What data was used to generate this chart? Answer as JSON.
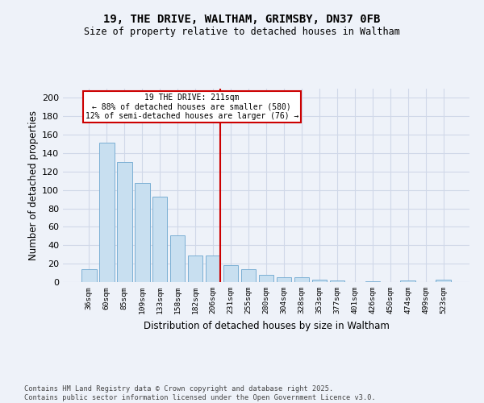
{
  "title": "19, THE DRIVE, WALTHAM, GRIMSBY, DN37 0FB",
  "subtitle": "Size of property relative to detached houses in Waltham",
  "xlabel": "Distribution of detached houses by size in Waltham",
  "ylabel": "Number of detached properties",
  "categories": [
    "36sqm",
    "60sqm",
    "85sqm",
    "109sqm",
    "133sqm",
    "158sqm",
    "182sqm",
    "206sqm",
    "231sqm",
    "255sqm",
    "280sqm",
    "304sqm",
    "328sqm",
    "353sqm",
    "377sqm",
    "401sqm",
    "426sqm",
    "450sqm",
    "474sqm",
    "499sqm",
    "523sqm"
  ],
  "values": [
    14,
    151,
    130,
    108,
    93,
    51,
    29,
    29,
    18,
    14,
    8,
    5,
    5,
    3,
    2,
    0,
    1,
    0,
    2,
    0,
    3
  ],
  "bar_color": "#c8dff0",
  "bar_edge_color": "#7bafd4",
  "background_color": "#eef2f9",
  "grid_color": "#d0d8e8",
  "vline_x_index": 7,
  "vline_label": "19 THE DRIVE: 211sqm",
  "vline_pct_smaller": "88% of detached houses are smaller (580)",
  "vline_pct_larger": "12% of semi-detached houses are larger (76)",
  "annotation_box_color": "#cc0000",
  "ylim": [
    0,
    210
  ],
  "yticks": [
    0,
    20,
    40,
    60,
    80,
    100,
    120,
    140,
    160,
    180,
    200
  ],
  "footnote1": "Contains HM Land Registry data © Crown copyright and database right 2025.",
  "footnote2": "Contains public sector information licensed under the Open Government Licence v3.0."
}
